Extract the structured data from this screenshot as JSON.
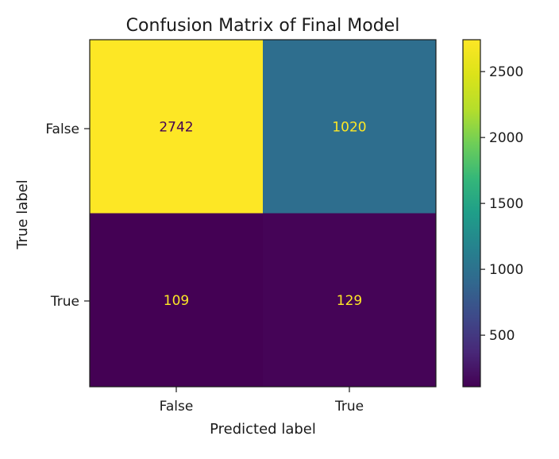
{
  "chart_data": {
    "type": "heatmap",
    "title": "Confusion Matrix of Final Model",
    "xlabel": "Predicted label",
    "ylabel": "True label",
    "x_categories": [
      "False",
      "True"
    ],
    "y_categories": [
      "False",
      "True"
    ],
    "values": [
      [
        2742,
        1020
      ],
      [
        109,
        129
      ]
    ],
    "colormap": "viridis",
    "colorbar": {
      "min": 109,
      "max": 2742,
      "ticks": [
        500,
        1000,
        1500,
        2000,
        2500
      ],
      "tick_labels": [
        "500",
        "1000",
        "1500",
        "2000",
        "2500"
      ]
    },
    "colors": {
      "cell_false_false": "#fde725",
      "cell_false_true": "#2e6e8e",
      "cell_true_false": "#440154",
      "cell_true_true": "#450457",
      "label_on_dark": "#fde725",
      "label_on_light": "#440154"
    }
  }
}
